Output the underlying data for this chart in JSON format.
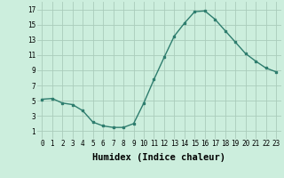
{
  "x": [
    0,
    1,
    2,
    3,
    4,
    5,
    6,
    7,
    8,
    9,
    10,
    11,
    12,
    13,
    14,
    15,
    16,
    17,
    18,
    19,
    20,
    21,
    22,
    23
  ],
  "y": [
    5.2,
    5.3,
    4.7,
    4.5,
    3.7,
    2.2,
    1.7,
    1.5,
    1.5,
    2.0,
    4.7,
    7.8,
    10.7,
    13.5,
    15.2,
    16.7,
    16.8,
    15.7,
    14.2,
    12.7,
    11.2,
    10.2,
    9.3,
    8.8
  ],
  "xlabel": "Humidex (Indice chaleur)",
  "line_color": "#2e7d6e",
  "bg_color": "#cceedd",
  "grid_color": "#aaccbb",
  "xlim": [
    -0.5,
    23.5
  ],
  "ylim": [
    0,
    18
  ],
  "yticks": [
    1,
    3,
    5,
    7,
    9,
    11,
    13,
    15,
    17
  ],
  "xticks": [
    0,
    1,
    2,
    3,
    4,
    5,
    6,
    7,
    8,
    9,
    10,
    11,
    12,
    13,
    14,
    15,
    16,
    17,
    18,
    19,
    20,
    21,
    22,
    23
  ],
  "tick_fontsize": 5.5,
  "xlabel_fontsize": 7.5
}
